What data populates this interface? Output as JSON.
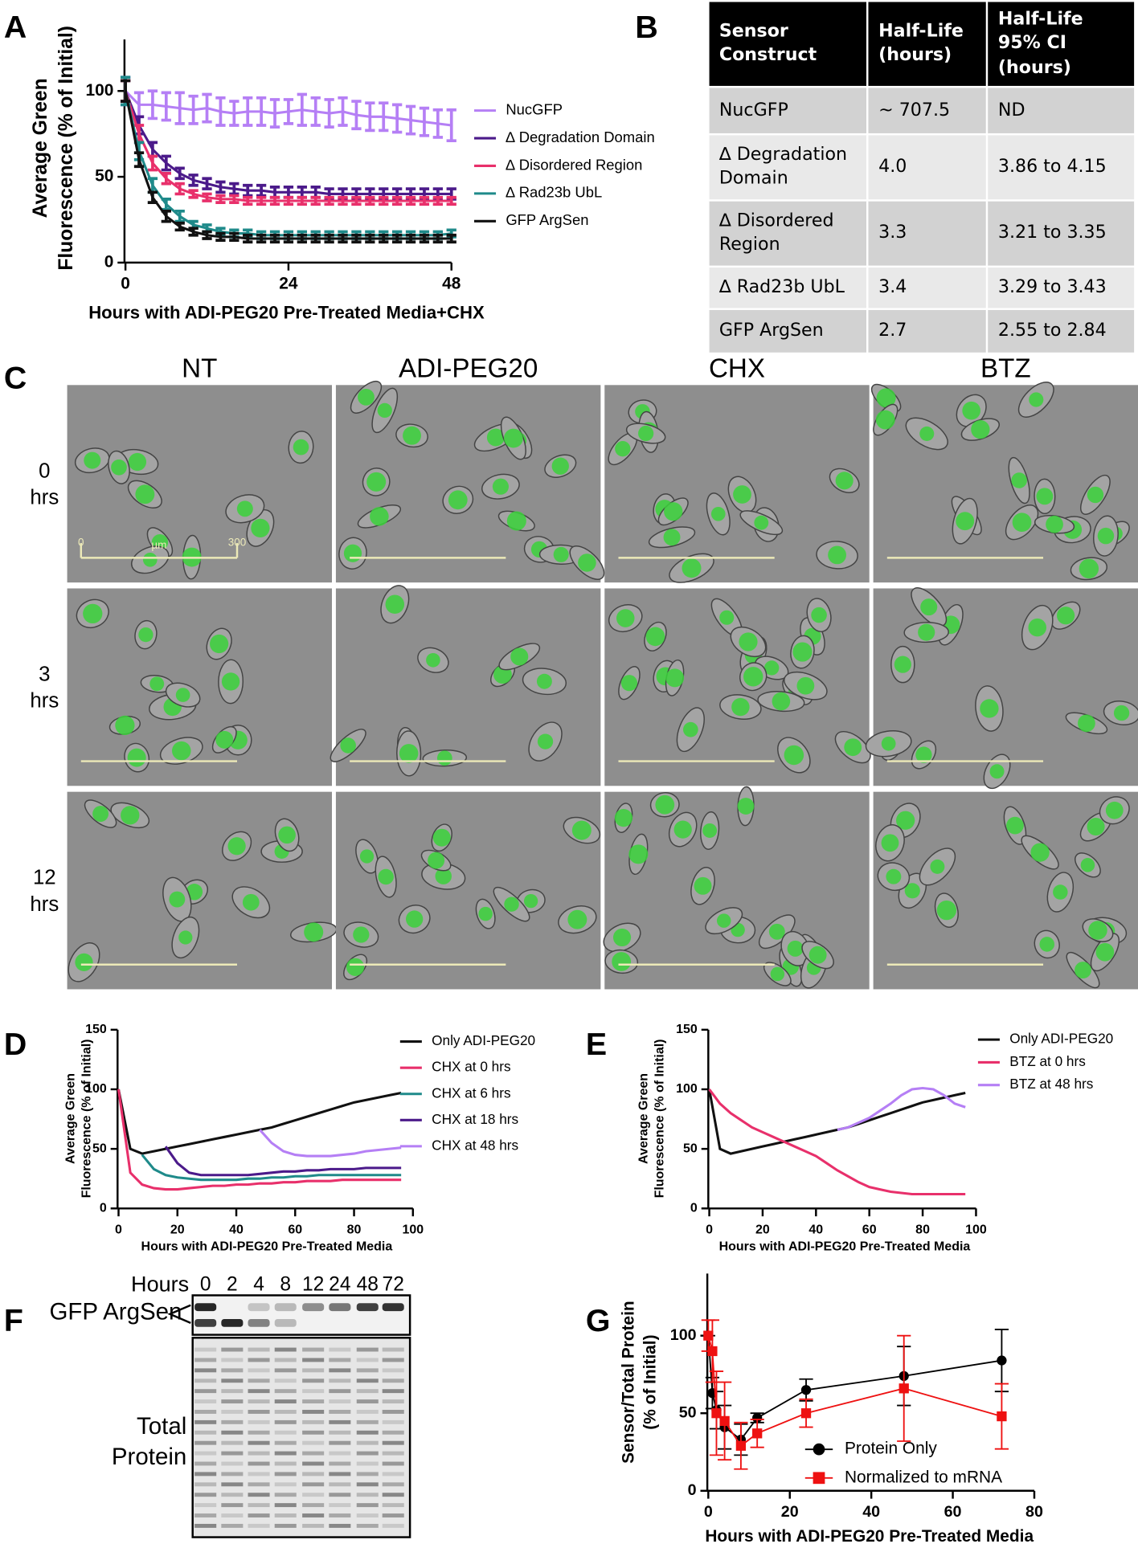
{
  "panel_letters": [
    "A",
    "B",
    "C",
    "D",
    "E",
    "F",
    "G"
  ],
  "chart_data": [
    {
      "type": "line",
      "xlabel": "Hours with ADI-PEG20 Pre-Treated Media+CHX",
      "ylabel": [
        "Average Green",
        "Fluorescence (% of Initial)"
      ],
      "x": [
        0,
        2,
        4,
        6,
        8,
        10,
        12,
        14,
        16,
        18,
        20,
        22,
        24,
        26,
        28,
        30,
        32,
        34,
        36,
        38,
        40,
        42,
        44,
        46,
        48
      ],
      "xlim": [
        0,
        48
      ],
      "xticks": [
        0,
        24,
        48
      ],
      "ylim": [
        0,
        130
      ],
      "yticks": [
        0,
        50,
        100
      ],
      "series": [
        {
          "name": "NucGFP",
          "color": "#b57ff5",
          "values": [
            100,
            92,
            92,
            91,
            90,
            89,
            90,
            88,
            87,
            88,
            88,
            87,
            88,
            89,
            88,
            87,
            88,
            86,
            85,
            85,
            84,
            83,
            82,
            81,
            80
          ],
          "errors": [
            8,
            7,
            8,
            8,
            9,
            8,
            8,
            8,
            7,
            8,
            8,
            8,
            7,
            9,
            8,
            8,
            8,
            8,
            8,
            8,
            8,
            8,
            8,
            8,
            9
          ]
        },
        {
          "name": "∆ Degradation Domain",
          "color": "#4b1a8a",
          "values": [
            100,
            80,
            66,
            58,
            52,
            48,
            46,
            44,
            43,
            42,
            42,
            41,
            41,
            41,
            41,
            40,
            40,
            40,
            40,
            40,
            40,
            40,
            40,
            40,
            40
          ],
          "errors": [
            6,
            5,
            4,
            4,
            3,
            3,
            3,
            3,
            3,
            3,
            3,
            3,
            3,
            3,
            3,
            3,
            3,
            3,
            3,
            3,
            3,
            3,
            3,
            3,
            3
          ]
        },
        {
          "name": "∆ Disordered Region",
          "color": "#e8306b",
          "values": [
            100,
            75,
            58,
            49,
            43,
            40,
            38,
            37,
            37,
            36,
            36,
            36,
            36,
            36,
            36,
            36,
            36,
            36,
            36,
            36,
            36,
            36,
            36,
            36,
            36
          ],
          "errors": [
            6,
            5,
            4,
            3,
            3,
            2,
            2,
            2,
            2,
            2,
            2,
            2,
            2,
            2,
            2,
            2,
            2,
            2,
            2,
            2,
            2,
            2,
            2,
            2,
            2
          ]
        },
        {
          "name": "∆ Rad23b UbL",
          "color": "#1f8a8a",
          "values": [
            100,
            65,
            45,
            34,
            27,
            22,
            20,
            18,
            17,
            17,
            16,
            16,
            16,
            16,
            16,
            16,
            16,
            16,
            16,
            16,
            16,
            16,
            16,
            16,
            17
          ],
          "errors": [
            8,
            5,
            4,
            3,
            3,
            2,
            2,
            2,
            2,
            2,
            2,
            2,
            2,
            2,
            2,
            2,
            2,
            2,
            2,
            2,
            2,
            2,
            2,
            2,
            2
          ]
        },
        {
          "name": "GFP ArgSen",
          "color": "#111111",
          "values": [
            100,
            60,
            38,
            27,
            21,
            18,
            16,
            15,
            15,
            14,
            14,
            14,
            14,
            14,
            14,
            14,
            14,
            14,
            14,
            14,
            14,
            14,
            14,
            14,
            14
          ],
          "errors": [
            6,
            4,
            3,
            3,
            2,
            2,
            2,
            2,
            2,
            2,
            2,
            2,
            2,
            2,
            2,
            2,
            2,
            2,
            2,
            2,
            2,
            2,
            2,
            2,
            2
          ]
        }
      ]
    },
    {
      "type": "line",
      "xlabel": "Hours with ADI-PEG20 Pre-Treated Media",
      "ylabel": [
        "Average Green",
        "Fluorescence (% of Initial)"
      ],
      "x": [
        0,
        4,
        8,
        12,
        16,
        20,
        24,
        28,
        32,
        36,
        40,
        44,
        48,
        52,
        56,
        60,
        64,
        68,
        72,
        76,
        80,
        84,
        88,
        92,
        96
      ],
      "xlim": [
        0,
        100
      ],
      "xticks": [
        0,
        20,
        40,
        60,
        80,
        100
      ],
      "ylim": [
        0,
        150
      ],
      "yticks": [
        0,
        50,
        100,
        150
      ],
      "series": [
        {
          "name": "Only ADI-PEG20",
          "color": "#111111",
          "values": [
            100,
            50,
            46,
            48,
            50,
            52,
            54,
            56,
            58,
            60,
            62,
            64,
            66,
            68,
            71,
            74,
            77,
            80,
            83,
            86,
            89,
            91,
            93,
            95,
            97
          ]
        },
        {
          "name": "CHX at 0 hrs",
          "color": "#e8306b",
          "values": [
            100,
            30,
            20,
            17,
            16,
            16,
            17,
            18,
            19,
            19,
            20,
            20,
            21,
            21,
            22,
            22,
            23,
            23,
            23,
            24,
            24,
            24,
            24,
            24,
            24
          ]
        },
        {
          "name": "CHX at 6 hrs",
          "color": "#1f8a8a",
          "values": [
            null,
            null,
            45,
            33,
            28,
            26,
            25,
            24,
            24,
            24,
            24,
            25,
            25,
            26,
            26,
            27,
            27,
            28,
            28,
            28,
            28,
            28,
            28,
            28,
            28
          ]
        },
        {
          "name": "CHX at 18 hrs",
          "color": "#4b1a8a",
          "values": [
            null,
            null,
            null,
            null,
            52,
            38,
            30,
            28,
            28,
            28,
            28,
            28,
            29,
            30,
            31,
            31,
            32,
            32,
            33,
            33,
            33,
            34,
            34,
            34,
            34
          ]
        },
        {
          "name": "CHX at 48 hrs",
          "color": "#b57ff5",
          "values": [
            null,
            null,
            null,
            null,
            null,
            null,
            null,
            null,
            null,
            null,
            null,
            null,
            66,
            55,
            48,
            45,
            44,
            44,
            44,
            45,
            46,
            48,
            49,
            50,
            51
          ]
        }
      ]
    },
    {
      "type": "line",
      "xlabel": "Hours with ADI-PEG20 Pre-Treated Media",
      "ylabel": [
        "Average Green",
        "Fluorescence (% of Initial)"
      ],
      "x": [
        0,
        4,
        8,
        12,
        16,
        20,
        24,
        28,
        32,
        36,
        40,
        44,
        48,
        52,
        56,
        60,
        64,
        68,
        72,
        76,
        80,
        84,
        88,
        92,
        96
      ],
      "xlim": [
        0,
        100
      ],
      "xticks": [
        0,
        20,
        40,
        60,
        80,
        100
      ],
      "ylim": [
        0,
        150
      ],
      "yticks": [
        0,
        50,
        100,
        150
      ],
      "series": [
        {
          "name": "Only ADI-PEG20",
          "color": "#111111",
          "values": [
            100,
            50,
            46,
            48,
            50,
            52,
            54,
            56,
            58,
            60,
            62,
            64,
            66,
            68,
            71,
            74,
            77,
            80,
            83,
            86,
            89,
            91,
            93,
            95,
            97
          ]
        },
        {
          "name": "BTZ at 0 hrs",
          "color": "#e8306b",
          "values": [
            100,
            88,
            80,
            74,
            68,
            64,
            60,
            56,
            52,
            48,
            44,
            38,
            32,
            27,
            22,
            18,
            16,
            14,
            13,
            12,
            12,
            12,
            12,
            12,
            12
          ]
        },
        {
          "name": "BTZ at 48 hrs",
          "color": "#b57ff5",
          "values": [
            null,
            null,
            null,
            null,
            null,
            null,
            null,
            null,
            null,
            null,
            null,
            null,
            66,
            68,
            72,
            76,
            82,
            88,
            95,
            100,
            101,
            100,
            95,
            88,
            85
          ]
        }
      ]
    },
    {
      "type": "line",
      "xlabel": "Hours with ADI-PEG20 Pre-Treated Media",
      "ylabel": [
        "Sensor/Total Protein",
        "(% of Initial)"
      ],
      "x": [
        0,
        1,
        2,
        4,
        8,
        12,
        24,
        48,
        72
      ],
      "xlim": [
        0,
        80
      ],
      "xticks": [
        0,
        20,
        40,
        60,
        80
      ],
      "ylim": [
        0,
        140
      ],
      "yticks": [
        0,
        50,
        100
      ],
      "series": [
        {
          "name": "Protein Only",
          "color": "#000000",
          "marker": "circle",
          "values": [
            100,
            63,
            52,
            41,
            33,
            47,
            65,
            74,
            84
          ],
          "errors": [
            0,
            10,
            12,
            14,
            10,
            3,
            7,
            19,
            20
          ]
        },
        {
          "name": "Normalized to mRNA",
          "color": "#ee1111",
          "marker": "square",
          "values": [
            100,
            90,
            50,
            45,
            29,
            37,
            50,
            66,
            48
          ],
          "errors": [
            10,
            20,
            27,
            25,
            15,
            9,
            9,
            34,
            21
          ]
        }
      ]
    }
  ],
  "table": {
    "header": [
      "Sensor Construct",
      "Half-Life (hours)",
      "Half-Life 95% CI (hours)"
    ],
    "rows": [
      [
        "NucGFP",
        "~ 707.5",
        "ND"
      ],
      [
        "∆ Degradation Domain",
        "4.0",
        "3.86 to 4.15"
      ],
      [
        "∆ Disordered Region",
        "3.3",
        "3.21 to 3.35"
      ],
      [
        "∆ Rad23b UbL",
        "3.4",
        "3.29 to 3.43"
      ],
      [
        "GFP ArgSen",
        "2.7",
        "2.55 to 2.84"
      ]
    ]
  },
  "image_grid": {
    "columns": [
      "NT",
      "ADI-PEG20",
      "CHX",
      "BTZ"
    ],
    "rows": [
      {
        "number": "0",
        "unit": "hrs"
      },
      {
        "number": "3",
        "unit": "hrs"
      },
      {
        "number": "12",
        "unit": "hrs"
      }
    ],
    "scale_bar": {
      "start": "0",
      "unit": "µm",
      "end": "300"
    }
  },
  "gel": {
    "axis_label": "Hours",
    "lanes": [
      "0",
      "2",
      "4",
      "8",
      "12",
      "24",
      "48",
      "72"
    ],
    "band_label": "GFP ArgSen",
    "total_label": [
      "Total",
      "Protein"
    ]
  }
}
